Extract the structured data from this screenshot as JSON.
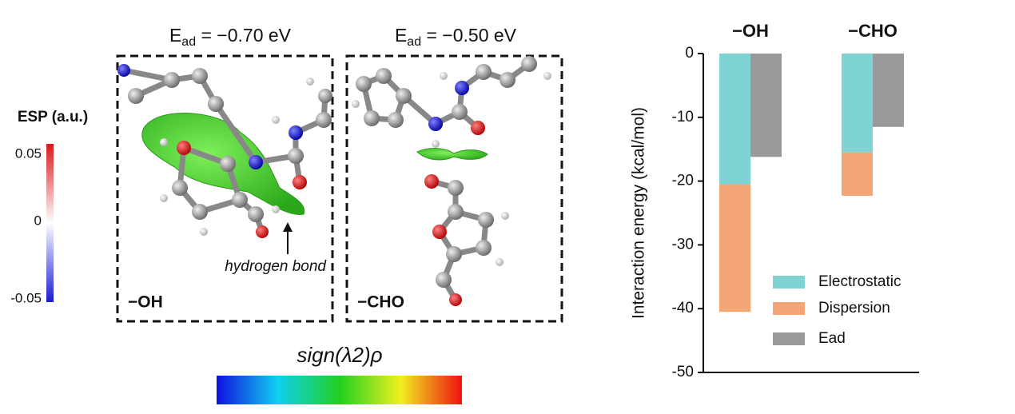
{
  "esp_scale": {
    "title": "ESP (a.u.)",
    "ticks": [
      "0.05",
      "0",
      "-0.05"
    ]
  },
  "panels": [
    {
      "energy": {
        "symbol": "E",
        "subscript": "ad",
        "text": " = −0.70 eV"
      },
      "label": "−OH",
      "annotation": "hydrogen bond"
    },
    {
      "energy": {
        "symbol": "E",
        "subscript": "ad",
        "text": " = −0.50 eV"
      },
      "label": "−CHO"
    }
  ],
  "colorbar": {
    "label": "sign(λ2)ρ"
  },
  "chart_data": {
    "type": "bar",
    "categories": [
      "−OH",
      "−CHO"
    ],
    "ylabel": "Interaction energy (kcal/mol)",
    "ylim": [
      0,
      -50
    ],
    "yticks": [
      0,
      -10,
      -20,
      -30,
      -40,
      -50
    ],
    "series": [
      {
        "name": "Electrostatic",
        "color": "#7fd3d3",
        "values": [
          -20.5,
          -15.5
        ]
      },
      {
        "name": "Dispersion",
        "color": "#f4a575",
        "values": [
          -20.0,
          -6.8
        ]
      },
      {
        "name": "Ead",
        "color": "#999999",
        "values": [
          -16.2,
          -11.5
        ]
      }
    ]
  }
}
